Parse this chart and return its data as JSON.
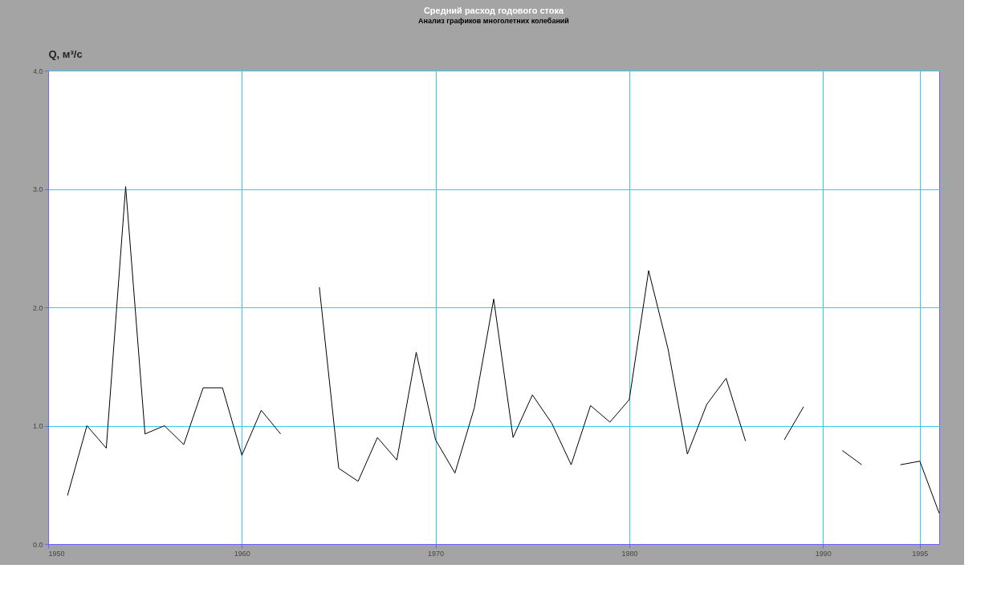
{
  "chart_data": {
    "type": "line",
    "title": "Средний расход годового стока",
    "subtitle": "Анализ графиков многолетних колебаний",
    "ylabel": "Q, м³/с",
    "x": [
      1951,
      1952,
      1953,
      1954,
      1955,
      1956,
      1957,
      1958,
      1959,
      1960,
      1961,
      1962,
      1963,
      1964,
      1965,
      1966,
      1967,
      1968,
      1969,
      1970,
      1971,
      1972,
      1973,
      1974,
      1975,
      1976,
      1977,
      1978,
      1979,
      1980,
      1981,
      1982,
      1983,
      1984,
      1985,
      1986,
      1987,
      1988,
      1989,
      1990,
      1991,
      1992,
      1993,
      1994,
      1995,
      1996
    ],
    "series": [
      {
        "color": "#000000",
        "values": [
          0.41,
          1.0,
          0.81,
          3.02,
          0.93,
          1.0,
          0.84,
          1.32,
          1.32,
          0.75,
          1.13,
          0.93,
          null,
          2.17,
          0.64,
          0.53,
          0.9,
          0.71,
          1.62,
          0.88,
          0.6,
          1.15,
          2.07,
          0.9,
          1.26,
          1.02,
          0.67,
          1.17,
          1.03,
          1.22,
          2.31,
          1.65,
          0.76,
          1.18,
          1.4,
          0.87,
          null,
          0.88,
          1.16,
          null,
          0.79,
          0.67,
          null,
          0.67,
          0.7,
          0.26
        ]
      }
    ],
    "xlim": [
      1950,
      1996
    ],
    "xticks": [
      1950,
      1960,
      1970,
      1980,
      1990,
      1995
    ],
    "ylim": [
      0,
      4
    ],
    "yticks": [
      {
        "value": 0,
        "label": "0.0"
      },
      {
        "value": 1,
        "label": "1.0"
      },
      {
        "value": 2,
        "label": "2.0"
      },
      {
        "value": 3,
        "label": "3.0"
      },
      {
        "value": 4,
        "label": "4.0"
      }
    ],
    "grid": true,
    "marker": "none",
    "line_style": "solid"
  }
}
